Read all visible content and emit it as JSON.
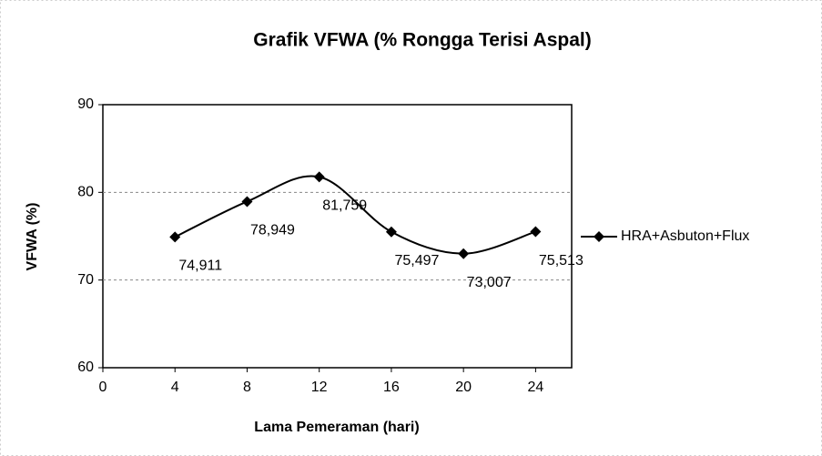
{
  "chart_data": {
    "type": "line",
    "title": "Grafik VFWA (% Rongga Terisi Aspal)",
    "x_label": "Lama Pemeraman (hari)",
    "y_label": "VFWA (%)",
    "x": [
      4,
      8,
      12,
      16,
      20,
      24
    ],
    "series": [
      {
        "name": "HRA+Asbuton+Flux",
        "color": "#000000",
        "values": [
          74.911,
          78.949,
          81.759,
          75.497,
          73.007,
          75.513
        ],
        "value_labels": [
          "74,911",
          "78,949",
          "81,759",
          "75,497",
          "73,007",
          "75,513"
        ]
      }
    ],
    "xlim": [
      0,
      26
    ],
    "xticks": [
      0,
      4,
      8,
      12,
      16,
      20,
      24
    ],
    "ylim": [
      60,
      90
    ],
    "yticks": [
      60,
      70,
      80,
      90
    ],
    "grid": true,
    "legend": "right"
  }
}
